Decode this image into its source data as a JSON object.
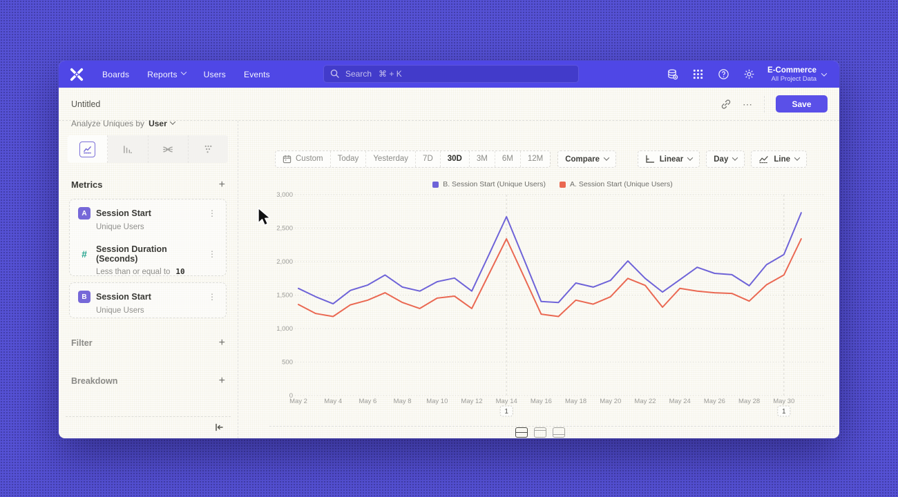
{
  "nav": {
    "items": [
      "Boards",
      "Reports",
      "Users",
      "Events"
    ],
    "search_placeholder": "Search   ⌘ + K",
    "project_name": "E-Commerce",
    "project_subtitle": "All Project Data"
  },
  "header": {
    "title": "Untitled",
    "save_label": "Save"
  },
  "icons": {
    "more": "⋯",
    "kebab": "⋮",
    "add": "+"
  },
  "sidebar": {
    "analyze_label": "Analyze Uniques by",
    "analyze_value": "User",
    "metrics_title": "Metrics",
    "metrics": [
      {
        "badge": "A",
        "title": "Session Start",
        "subtitle": "Unique Users"
      },
      {
        "badge": "#",
        "title": "Session Duration (Seconds)",
        "subtitle": "Less than or equal to",
        "value": "10"
      },
      {
        "badge": "B",
        "title": "Session Start",
        "subtitle": "Unique Users"
      }
    ],
    "filter_title": "Filter",
    "breakdown_title": "Breakdown"
  },
  "toolbar": {
    "date_ranges": [
      "Custom",
      "Today",
      "Yesterday",
      "7D",
      "30D",
      "3M",
      "6M",
      "12M"
    ],
    "active_range": "30D",
    "compare_label": "Compare",
    "scale_label": "Linear",
    "interval_label": "Day",
    "chart_type_label": "Line"
  },
  "chart_data": {
    "type": "line",
    "x": [
      "May 2",
      "May 3",
      "May 4",
      "May 5",
      "May 6",
      "May 7",
      "May 8",
      "May 9",
      "May 10",
      "May 11",
      "May 12",
      "May 13",
      "May 14",
      "May 15",
      "May 16",
      "May 17",
      "May 18",
      "May 19",
      "May 20",
      "May 21",
      "May 22",
      "May 23",
      "May 24",
      "May 25",
      "May 26",
      "May 27",
      "May 28",
      "May 29",
      "May 30",
      "May 31"
    ],
    "x_tick_every": 2,
    "series": [
      {
        "name": "B. Session Start (Unique Users)",
        "color": "#6e63d8",
        "values": [
          1600,
          1475,
          1370,
          1570,
          1650,
          1800,
          1620,
          1560,
          1700,
          1755,
          1560,
          2110,
          2670,
          2040,
          1405,
          1390,
          1680,
          1620,
          1720,
          2010,
          1750,
          1545,
          1730,
          1915,
          1825,
          1805,
          1640,
          1955,
          2105,
          2730
        ]
      },
      {
        "name": "A. Session Start (Unique Users)",
        "color": "#ea6852",
        "values": [
          1360,
          1225,
          1180,
          1355,
          1425,
          1535,
          1390,
          1300,
          1455,
          1485,
          1300,
          1820,
          2340,
          1780,
          1215,
          1180,
          1425,
          1365,
          1475,
          1750,
          1645,
          1320,
          1600,
          1560,
          1535,
          1525,
          1410,
          1655,
          1800,
          2340
        ]
      }
    ],
    "ylim": [
      0,
      3000
    ],
    "yticks": [
      0,
      500,
      1000,
      1500,
      2000,
      2500,
      3000
    ],
    "grid": true,
    "legend_position": "top-center",
    "annotations": [
      {
        "index": 12,
        "label": "1"
      },
      {
        "index": 28,
        "label": "1"
      }
    ]
  }
}
